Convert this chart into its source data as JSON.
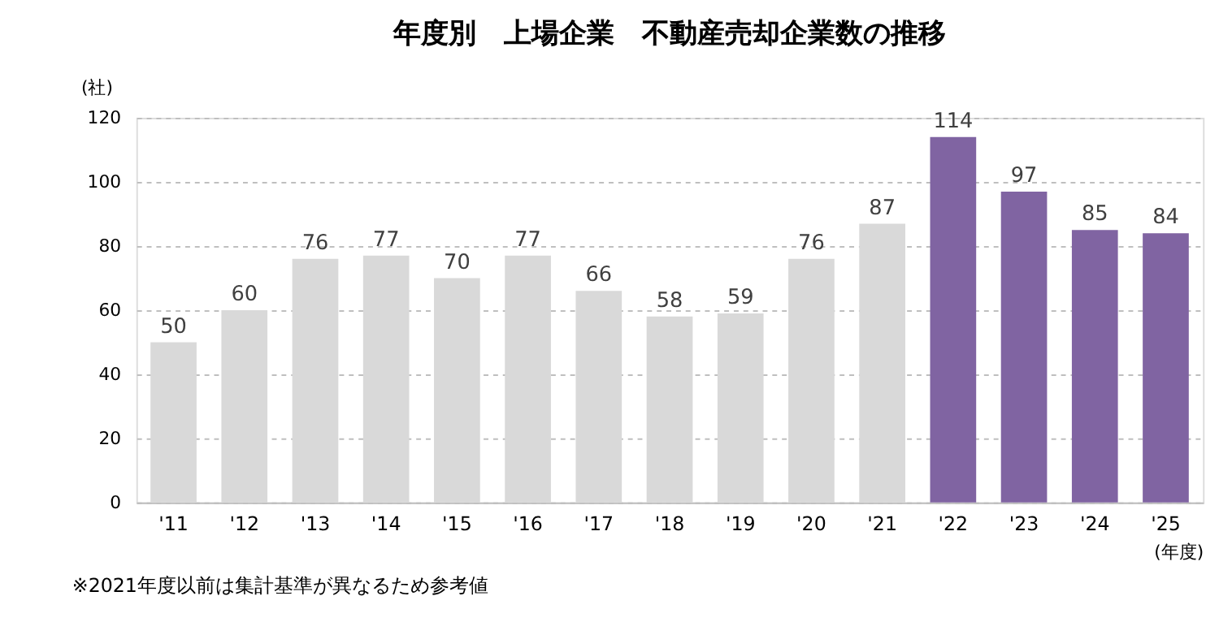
{
  "chart_data": {
    "type": "bar",
    "title": "年度別　上場企業　不動産売却企業数の推移",
    "ylabel": "(社)",
    "xlabel": "(年度)",
    "categories": [
      "'11",
      "'12",
      "'13",
      "'14",
      "'15",
      "'16",
      "'17",
      "'18",
      "'19",
      "'20",
      "'21",
      "'22",
      "'23",
      "'24",
      "'25"
    ],
    "values": [
      50,
      60,
      76,
      77,
      70,
      77,
      66,
      58,
      59,
      76,
      87,
      114,
      97,
      85,
      84
    ],
    "colors": [
      "#d9d9d9",
      "#d9d9d9",
      "#d9d9d9",
      "#d9d9d9",
      "#d9d9d9",
      "#d9d9d9",
      "#d9d9d9",
      "#d9d9d9",
      "#d9d9d9",
      "#d9d9d9",
      "#d9d9d9",
      "#8064a2",
      "#8064a2",
      "#8064a2",
      "#8064a2"
    ],
    "ylim": [
      0,
      120
    ],
    "yticks": [
      0,
      20,
      40,
      60,
      80,
      100,
      120
    ],
    "grid": "y",
    "data_labels": true,
    "annotations": [
      "※2021年度以前は集計基準が異なるため参考値"
    ]
  }
}
